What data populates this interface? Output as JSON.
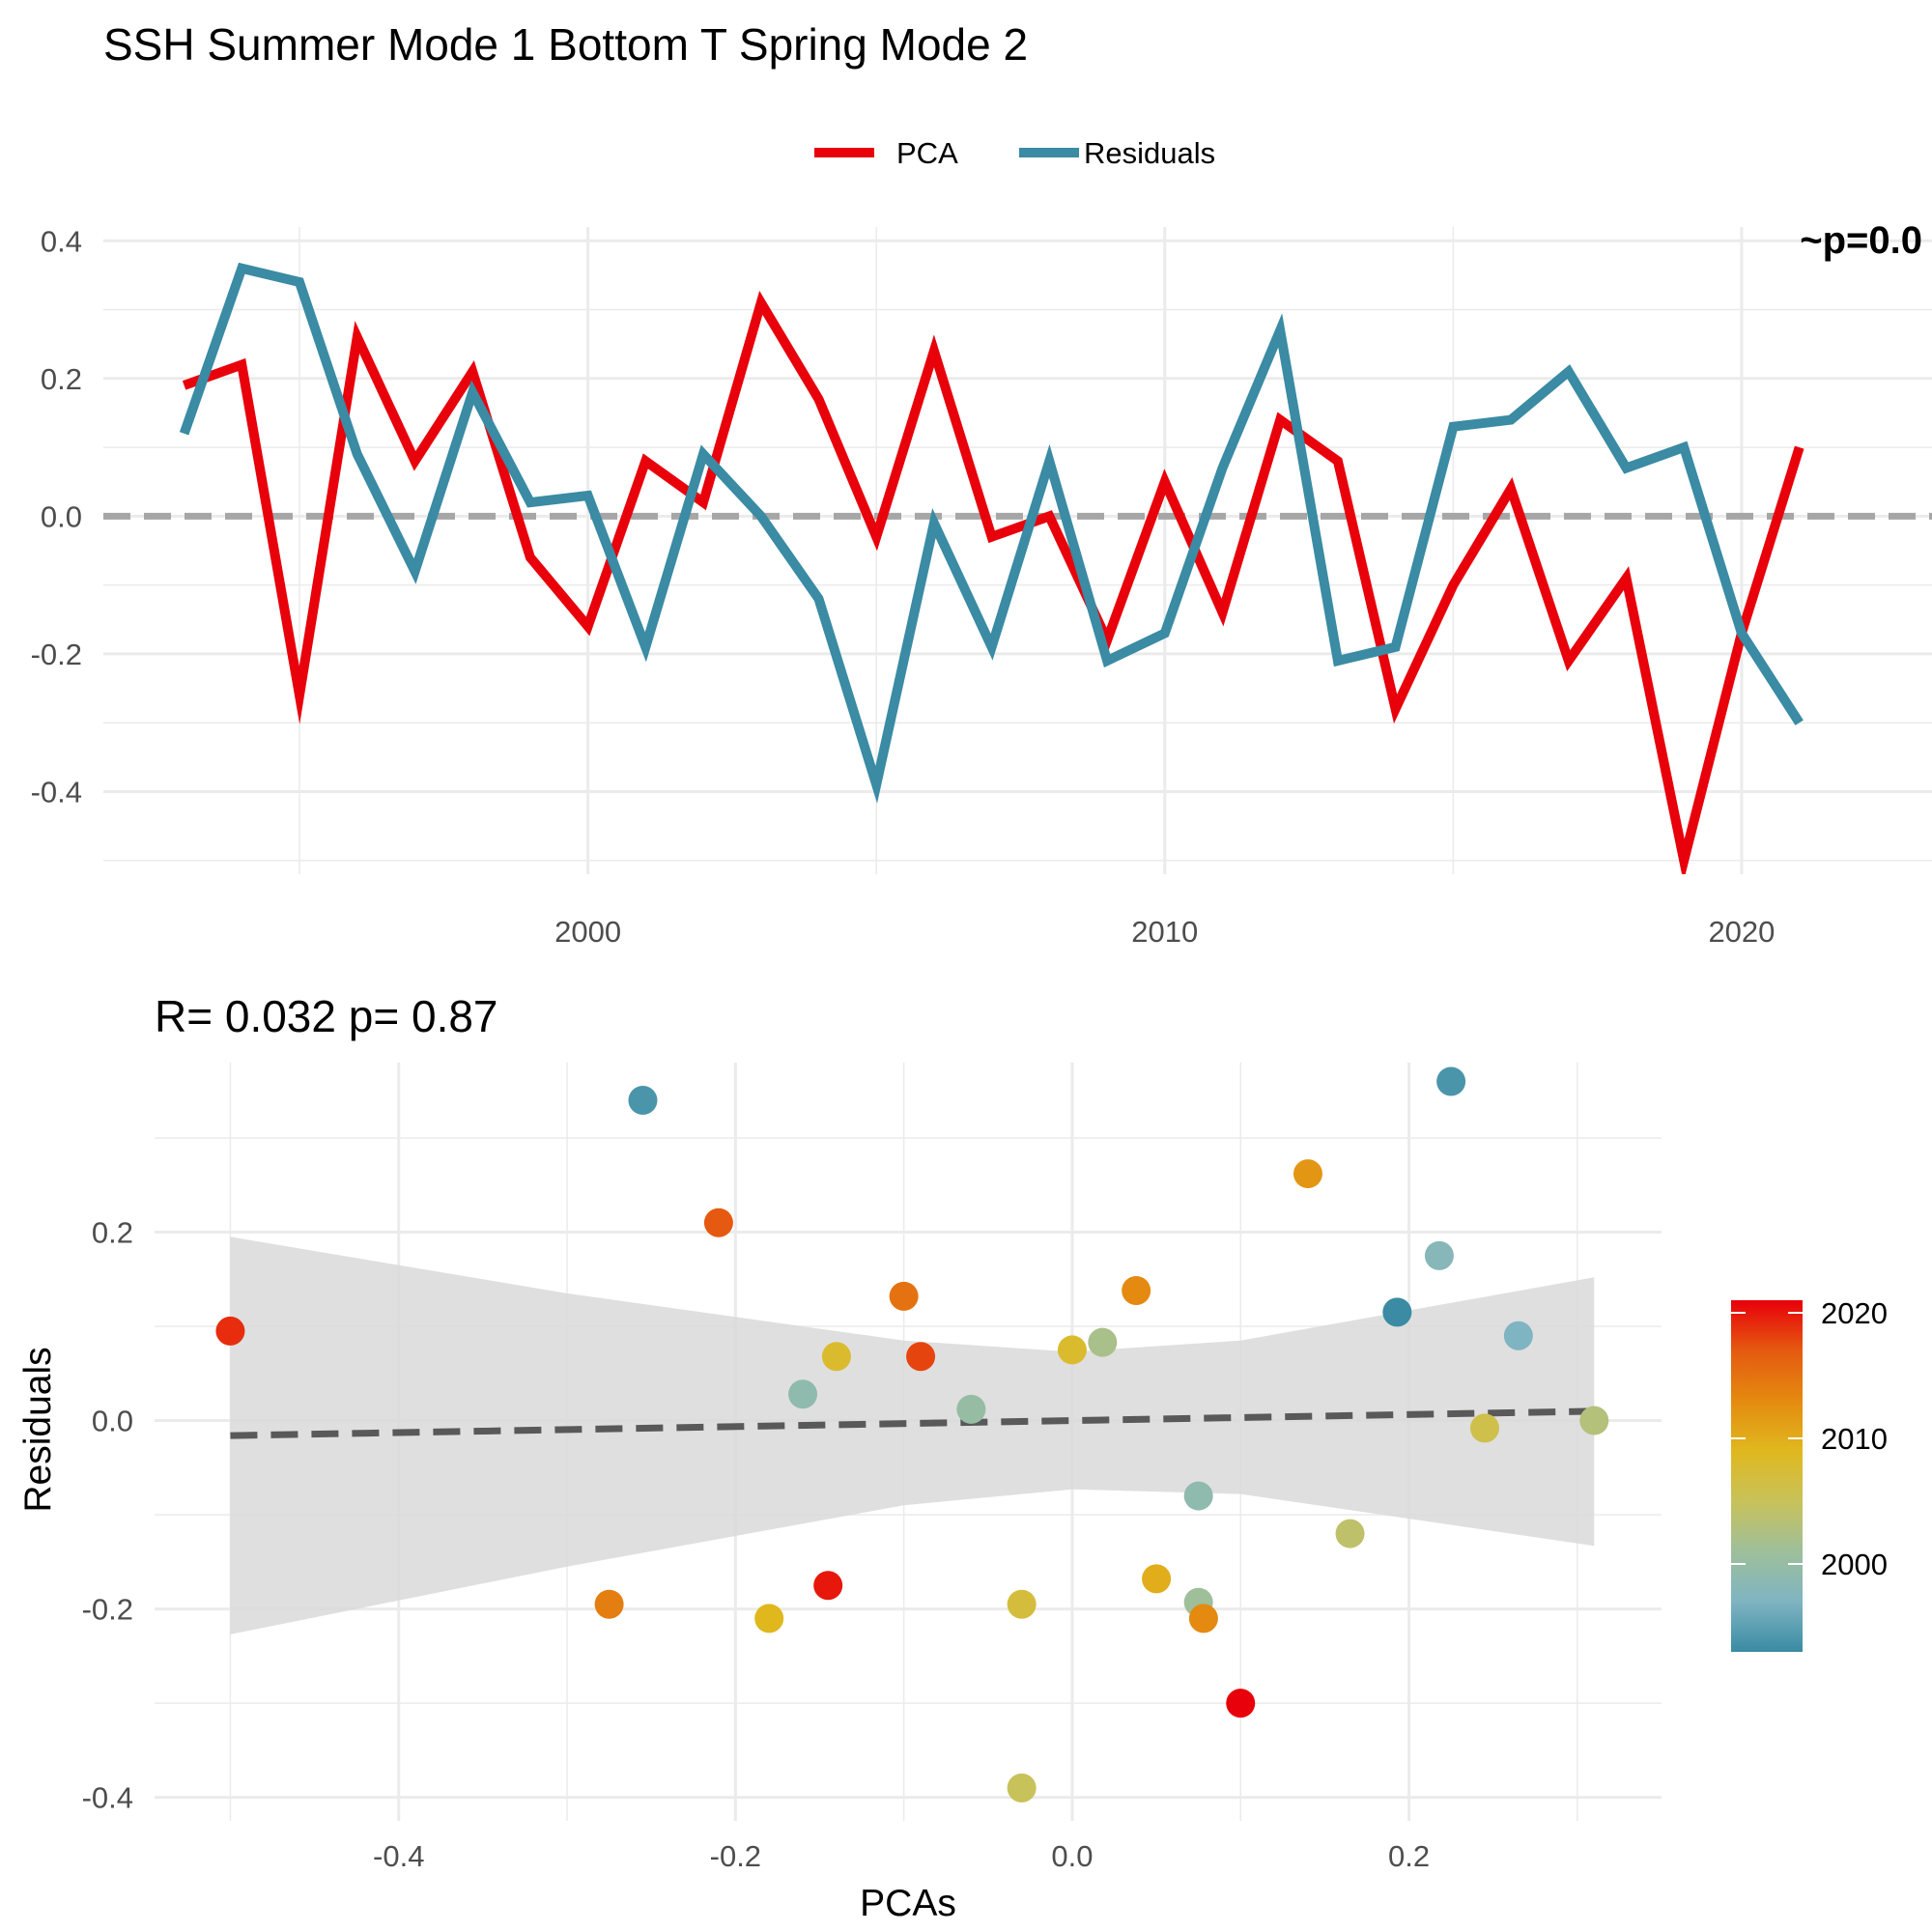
{
  "title": "SSH Summer Mode 1 Bottom T Spring Mode 2",
  "colors": {
    "pca": "#E8000B",
    "residuals": "#3A8BA3",
    "zero_line": "#A6A6A6",
    "grid": "#EBEBEB",
    "ribbon": "#D9D9D9",
    "fit_line": "#595959",
    "scale": [
      "#3A8BA3",
      "#7FB4C2",
      "#9EBF9A",
      "#C8C25A",
      "#E0B81E",
      "#E48A10",
      "#E55A10",
      "#E8000B"
    ]
  },
  "chart_data": [
    {
      "type": "line",
      "xlabel": "",
      "ylabel": "",
      "xlim": [
        1991.6,
        2023.3
      ],
      "ylim": [
        -0.52,
        0.42
      ],
      "x_ticks": [
        2000,
        2010,
        2020
      ],
      "y_ticks": [
        0.4,
        0.2,
        0.0,
        -0.2,
        -0.4
      ],
      "y_tick_labels": [
        "0.4",
        "0.2",
        "0.0",
        "-0.2",
        "-0.4"
      ],
      "hline": 0,
      "grid": true,
      "legend_position": "top",
      "corner_text": "~p=0.0",
      "x": [
        1993,
        1994,
        1995,
        1996,
        1997,
        1998,
        1999,
        2000,
        2001,
        2002,
        2003,
        2004,
        2005,
        2006,
        2007,
        2008,
        2009,
        2010,
        2011,
        2012,
        2013,
        2014,
        2015,
        2016,
        2017,
        2018,
        2019,
        2020,
        2021
      ],
      "series": [
        {
          "name": "PCA",
          "color": "#E8000B",
          "values": [
            0.19,
            0.22,
            -0.26,
            0.26,
            0.08,
            0.21,
            -0.06,
            -0.16,
            0.08,
            0.02,
            0.31,
            0.17,
            -0.03,
            0.24,
            -0.03,
            0.0,
            -0.18,
            0.05,
            -0.14,
            0.14,
            0.08,
            -0.28,
            -0.1,
            0.04,
            -0.21,
            -0.09,
            -0.5,
            -0.17,
            0.1
          ]
        },
        {
          "name": "Residuals",
          "color": "#3A8BA3",
          "values": [
            0.12,
            0.36,
            0.34,
            0.09,
            -0.08,
            0.18,
            0.02,
            0.03,
            -0.19,
            0.09,
            0.0,
            -0.12,
            -0.39,
            -0.01,
            -0.19,
            0.08,
            -0.21,
            -0.17,
            0.07,
            0.27,
            -0.21,
            -0.19,
            0.13,
            0.14,
            0.21,
            0.07,
            0.1,
            -0.17,
            -0.3
          ]
        }
      ]
    },
    {
      "type": "scatter",
      "subtitle": "R= 0.032  p= 0.87",
      "xlabel": "PCAs",
      "ylabel": "Residuals",
      "xlim": [
        -0.545,
        0.35
      ],
      "ylim": [
        -0.425,
        0.38
      ],
      "x_ticks": [
        -0.4,
        -0.2,
        0.0,
        0.2
      ],
      "x_tick_labels": [
        "-0.4",
        "-0.2",
        "0.0",
        "0.2"
      ],
      "y_ticks": [
        0.2,
        0.0,
        -0.2,
        -0.4
      ],
      "y_tick_labels": [
        "0.2",
        "0.0",
        "-0.2",
        "-0.4"
      ],
      "grid": true,
      "fit": {
        "slope": 0.032,
        "intercept": 0.0,
        "x_range": [
          -0.5,
          0.31
        ]
      },
      "band": {
        "x": [
          -0.5,
          -0.3,
          -0.1,
          0.0,
          0.1,
          0.31
        ],
        "upper": [
          0.195,
          0.135,
          0.085,
          0.073,
          0.085,
          0.152
        ],
        "lower": [
          -0.227,
          -0.155,
          -0.09,
          -0.073,
          -0.078,
          -0.133
        ]
      },
      "color_scale": {
        "name": "",
        "min": 1993,
        "max": 2021,
        "ticks": [
          2020,
          2010,
          2000
        ]
      },
      "legend_position": "right",
      "points": [
        {
          "x": -0.5,
          "y": 0.095,
          "year": 2019
        },
        {
          "x": -0.255,
          "y": 0.34,
          "year": 1994
        },
        {
          "x": -0.21,
          "y": 0.21,
          "year": 2017
        },
        {
          "x": -0.275,
          "y": -0.195,
          "year": 2014
        },
        {
          "x": -0.18,
          "y": -0.21,
          "year": 2009
        },
        {
          "x": -0.16,
          "y": 0.028,
          "year": 1999
        },
        {
          "x": -0.14,
          "y": 0.068,
          "year": 2008
        },
        {
          "x": -0.1,
          "y": 0.132,
          "year": 2015
        },
        {
          "x": -0.09,
          "y": 0.068,
          "year": 2018
        },
        {
          "x": -0.145,
          "y": -0.175,
          "year": 2020
        },
        {
          "x": -0.06,
          "y": 0.012,
          "year": 2000
        },
        {
          "x": -0.03,
          "y": -0.195,
          "year": 2007
        },
        {
          "x": -0.03,
          "y": -0.39,
          "year": 2005
        },
        {
          "x": 0.0,
          "y": 0.075,
          "year": 2008
        },
        {
          "x": 0.018,
          "y": 0.083,
          "year": 2002
        },
        {
          "x": 0.038,
          "y": 0.138,
          "year": 2013
        },
        {
          "x": 0.05,
          "y": -0.168,
          "year": 2010
        },
        {
          "x": 0.075,
          "y": -0.08,
          "year": 1999
        },
        {
          "x": 0.075,
          "y": -0.193,
          "year": 2001
        },
        {
          "x": 0.078,
          "y": -0.21,
          "year": 2013
        },
        {
          "x": 0.1,
          "y": -0.3,
          "year": 2021
        },
        {
          "x": 0.14,
          "y": 0.262,
          "year": 2012
        },
        {
          "x": 0.165,
          "y": -0.12,
          "year": 2004
        },
        {
          "x": 0.193,
          "y": 0.115,
          "year": 1993
        },
        {
          "x": 0.218,
          "y": 0.175,
          "year": 1998
        },
        {
          "x": 0.225,
          "y": 0.36,
          "year": 1994
        },
        {
          "x": 0.245,
          "y": -0.008,
          "year": 2006
        },
        {
          "x": 0.265,
          "y": 0.09,
          "year": 1997
        },
        {
          "x": 0.31,
          "y": 0.0,
          "year": 2003
        }
      ]
    }
  ]
}
